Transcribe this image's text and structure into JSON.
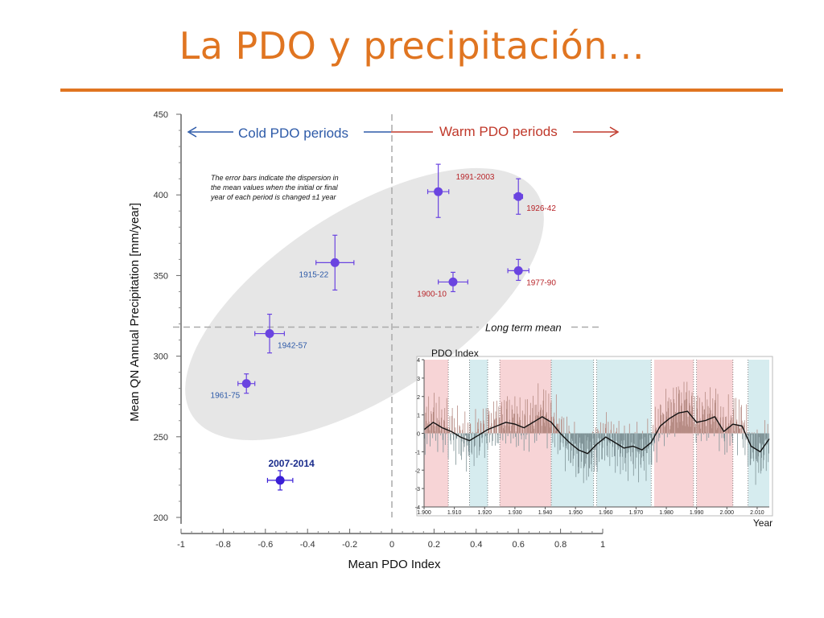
{
  "slide": {
    "title": "La PDO y precipitación…",
    "accent_color": "#e07521"
  },
  "chart_data": [
    {
      "type": "scatter",
      "xlabel": "Mean PDO Index",
      "ylabel": "Mean QN Annual Precipitation [mm/year]",
      "xlim": [
        -1,
        1
      ],
      "ylim": [
        200,
        450
      ],
      "x_ticks": [
        "-1",
        "-0.8",
        "-0.6",
        "-0.4",
        "-0.2",
        "0",
        "0.2",
        "0.4",
        "0.6",
        "0.8",
        "1"
      ],
      "y_ticks": [
        "200",
        "250",
        "300",
        "350",
        "400",
        "450"
      ],
      "grid": false,
      "annotations": {
        "cold": "Cold PDO periods",
        "warm": "Warm PDO periods",
        "errorbar_note": [
          "The error bars indicate the dispersion in",
          "the mean values when the initial or final",
          "year of each period is changed ±1 year"
        ],
        "long_term_mean": "Long term mean"
      },
      "long_term_mean_value": 318,
      "zero_line_x": 0,
      "colors": {
        "cold_label": "#2d5aa8",
        "warm_label": "#c0392b",
        "point": "#6a44e0",
        "point_recent": "#3a1fd6",
        "ellipse": "#e6e6e6",
        "guide": "#aaaaaa"
      },
      "points": [
        {
          "label": "1991-2003",
          "x": 0.22,
          "y": 402,
          "xerr": 0.05,
          "yerr_low": 16,
          "yerr_high": 17,
          "phase": "warm",
          "label_pos": "upper-right"
        },
        {
          "label": "1926-42",
          "x": 0.6,
          "y": 399,
          "xerr": 0.02,
          "yerr_low": 11,
          "yerr_high": 11,
          "phase": "warm",
          "label_pos": "lower-right"
        },
        {
          "label": "1977-90",
          "x": 0.6,
          "y": 353,
          "xerr": 0.05,
          "yerr_low": 6,
          "yerr_high": 7,
          "phase": "warm",
          "label_pos": "lower-right"
        },
        {
          "label": "1900-10",
          "x": 0.29,
          "y": 346,
          "xerr": 0.07,
          "yerr_low": 6,
          "yerr_high": 6,
          "phase": "warm",
          "label_pos": "lower-left"
        },
        {
          "label": "1915-22",
          "x": -0.27,
          "y": 358,
          "xerr": 0.09,
          "yerr_low": 17,
          "yerr_high": 17,
          "phase": "cold",
          "label_pos": "lower-left"
        },
        {
          "label": "1942-57",
          "x": -0.58,
          "y": 314,
          "xerr": 0.07,
          "yerr_low": 12,
          "yerr_high": 12,
          "phase": "cold",
          "label_pos": "lower-right"
        },
        {
          "label": "1961-75",
          "x": -0.69,
          "y": 283,
          "xerr": 0.04,
          "yerr_low": 6,
          "yerr_high": 6,
          "phase": "cold",
          "label_pos": "lower-left"
        },
        {
          "label": "2007-2014",
          "x": -0.53,
          "y": 223,
          "xerr": 0.06,
          "yerr_low": 6,
          "yerr_high": 6,
          "phase": "recent",
          "label_pos": "above",
          "bold": true
        }
      ]
    },
    {
      "type": "area",
      "title": "PDO Index",
      "xlabel": "Year",
      "xlim": [
        1900,
        2014
      ],
      "ylim": [
        -4,
        4
      ],
      "x_ticks": [
        "1.900",
        "1.910",
        "1.920",
        "1.930",
        "1.940",
        "1.950",
        "1.960",
        "1.970",
        "1.980",
        "1.990",
        "2.000",
        "2.010"
      ],
      "y_ticks": [
        "4",
        "3",
        "2",
        "1",
        "0",
        "-1",
        "-2",
        "-3",
        "-4"
      ],
      "colors": {
        "warm_band": "#f7d4d6",
        "cold_band": "#d6ecef",
        "positive_bars": "#b58a82",
        "negative_bars": "#7f9296",
        "smoothed_line": "#111111"
      },
      "warm_periods": [
        [
          1900,
          1908
        ],
        [
          1925,
          1942
        ],
        [
          1976,
          1989
        ],
        [
          1990,
          2002
        ]
      ],
      "cold_periods": [
        [
          1915,
          1921
        ],
        [
          1942,
          1956
        ],
        [
          1957,
          1975
        ],
        [
          2007,
          2014
        ]
      ],
      "smoothed_series": {
        "x": [
          1900,
          1903,
          1906,
          1909,
          1912,
          1915,
          1918,
          1921,
          1924,
          1927,
          1930,
          1933,
          1936,
          1939,
          1942,
          1945,
          1948,
          1951,
          1954,
          1957,
          1960,
          1963,
          1966,
          1969,
          1972,
          1975,
          1978,
          1981,
          1984,
          1987,
          1990,
          1993,
          1996,
          1999,
          2002,
          2005,
          2008,
          2011,
          2014
        ],
        "y": [
          0.2,
          0.6,
          0.3,
          0.1,
          -0.2,
          -0.4,
          -0.1,
          0.2,
          0.4,
          0.6,
          0.5,
          0.3,
          0.6,
          0.9,
          0.6,
          0.0,
          -0.5,
          -0.9,
          -1.1,
          -0.6,
          -0.2,
          -0.5,
          -0.8,
          -0.7,
          -0.9,
          -0.5,
          0.4,
          0.8,
          1.1,
          1.2,
          0.6,
          0.7,
          0.9,
          0.1,
          0.5,
          0.4,
          -0.7,
          -1.0,
          -0.3
        ]
      }
    }
  ]
}
